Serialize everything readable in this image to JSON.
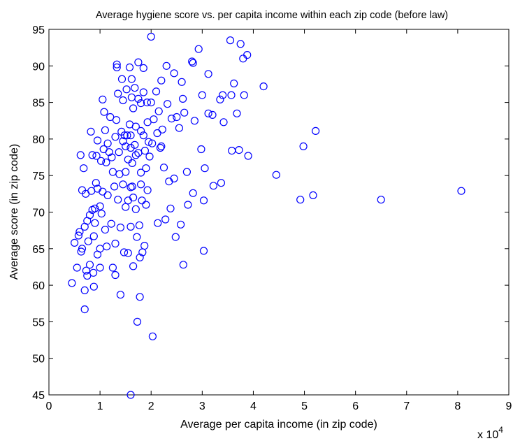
{
  "chart_data": {
    "type": "scatter",
    "title": "Average hygiene score vs. per capita income within each zip code (before law)",
    "xlabel": "Average per capita income (in zip code)",
    "ylabel": "Average score (in zip code)",
    "x_multiplier_label": {
      "base": "x 10",
      "exponent": "4"
    },
    "xlim": [
      0,
      9
    ],
    "ylim": [
      45,
      95
    ],
    "xticks": [
      "0",
      "1",
      "2",
      "3",
      "4",
      "5",
      "6",
      "7",
      "8",
      "9"
    ],
    "yticks": [
      "45",
      "50",
      "55",
      "60",
      "65",
      "70",
      "75",
      "80",
      "85",
      "90",
      "95"
    ],
    "grid": false,
    "marker_color": "#0000ff",
    "x_units": "x 10^4",
    "points": [
      [
        0.45,
        60.3
      ],
      [
        0.5,
        65.8
      ],
      [
        0.55,
        62.4
      ],
      [
        0.58,
        66.8
      ],
      [
        0.6,
        67.3
      ],
      [
        0.62,
        77.8
      ],
      [
        0.63,
        64.6
      ],
      [
        0.65,
        73.0
      ],
      [
        0.65,
        65.0
      ],
      [
        0.68,
        76.0
      ],
      [
        0.7,
        59.3
      ],
      [
        0.7,
        56.7
      ],
      [
        0.7,
        68.0
      ],
      [
        0.72,
        72.5
      ],
      [
        0.73,
        62.0
      ],
      [
        0.75,
        68.8
      ],
      [
        0.75,
        61.3
      ],
      [
        0.77,
        66.0
      ],
      [
        0.8,
        62.8
      ],
      [
        0.8,
        69.6
      ],
      [
        0.82,
        81.0
      ],
      [
        0.83,
        72.9
      ],
      [
        0.85,
        70.3
      ],
      [
        0.85,
        77.8
      ],
      [
        0.87,
        61.7
      ],
      [
        0.88,
        66.7
      ],
      [
        0.88,
        59.8
      ],
      [
        0.9,
        68.5
      ],
      [
        0.9,
        70.5
      ],
      [
        0.92,
        74.0
      ],
      [
        0.93,
        77.7
      ],
      [
        0.95,
        64.2
      ],
      [
        0.95,
        79.8
      ],
      [
        0.95,
        73.2
      ],
      [
        1.0,
        70.8
      ],
      [
        1.0,
        65.0
      ],
      [
        1.0,
        62.4
      ],
      [
        1.02,
        77.0
      ],
      [
        1.03,
        69.8
      ],
      [
        1.05,
        72.8
      ],
      [
        1.05,
        85.4
      ],
      [
        1.07,
        78.6
      ],
      [
        1.08,
        83.7
      ],
      [
        1.1,
        81.2
      ],
      [
        1.1,
        67.6
      ],
      [
        1.12,
        76.8
      ],
      [
        1.13,
        65.3
      ],
      [
        1.15,
        79.4
      ],
      [
        1.15,
        72.3
      ],
      [
        1.18,
        78.2
      ],
      [
        1.2,
        83.0
      ],
      [
        1.22,
        68.4
      ],
      [
        1.23,
        77.5
      ],
      [
        1.25,
        75.5
      ],
      [
        1.25,
        62.4
      ],
      [
        1.28,
        73.5
      ],
      [
        1.3,
        80.3
      ],
      [
        1.3,
        65.7
      ],
      [
        1.3,
        61.4
      ],
      [
        1.32,
        82.6
      ],
      [
        1.33,
        90.2
      ],
      [
        1.33,
        89.8
      ],
      [
        1.35,
        86.2
      ],
      [
        1.35,
        71.7
      ],
      [
        1.37,
        78.2
      ],
      [
        1.38,
        75.2
      ],
      [
        1.4,
        67.9
      ],
      [
        1.4,
        58.7
      ],
      [
        1.42,
        81.0
      ],
      [
        1.43,
        88.2
      ],
      [
        1.45,
        85.3
      ],
      [
        1.45,
        79.7
      ],
      [
        1.45,
        73.8
      ],
      [
        1.47,
        64.5
      ],
      [
        1.48,
        80.5
      ],
      [
        1.5,
        79.0
      ],
      [
        1.5,
        75.5
      ],
      [
        1.5,
        70.7
      ],
      [
        1.52,
        86.8
      ],
      [
        1.53,
        80.5
      ],
      [
        1.55,
        77.2
      ],
      [
        1.55,
        71.6
      ],
      [
        1.55,
        64.4
      ],
      [
        1.58,
        89.8
      ],
      [
        1.58,
        82.0
      ],
      [
        1.6,
        80.5
      ],
      [
        1.6,
        78.8
      ],
      [
        1.6,
        73.4
      ],
      [
        1.6,
        68.0
      ],
      [
        1.62,
        88.2
      ],
      [
        1.62,
        85.7
      ],
      [
        1.63,
        76.7
      ],
      [
        1.63,
        73.5
      ],
      [
        1.65,
        84.2
      ],
      [
        1.65,
        72.0
      ],
      [
        1.65,
        62.6
      ],
      [
        1.68,
        87.0
      ],
      [
        1.68,
        79.2
      ],
      [
        1.7,
        81.7
      ],
      [
        1.7,
        77.8
      ],
      [
        1.7,
        70.4
      ],
      [
        1.72,
        66.6
      ],
      [
        1.73,
        55.0
      ],
      [
        1.75,
        90.5
      ],
      [
        1.75,
        85.5
      ],
      [
        1.75,
        78.1
      ],
      [
        1.77,
        68.2
      ],
      [
        1.78,
        63.8
      ],
      [
        1.78,
        58.4
      ],
      [
        1.8,
        84.9
      ],
      [
        1.8,
        81.1
      ],
      [
        1.8,
        75.4
      ],
      [
        1.8,
        73.8
      ],
      [
        1.82,
        71.6
      ],
      [
        1.83,
        64.5
      ],
      [
        1.85,
        89.7
      ],
      [
        1.85,
        86.4
      ],
      [
        1.85,
        80.5
      ],
      [
        1.87,
        65.4
      ],
      [
        1.88,
        78.4
      ],
      [
        1.9,
        76.0
      ],
      [
        1.9,
        71.0
      ],
      [
        1.92,
        85.0
      ],
      [
        1.93,
        82.3
      ],
      [
        1.93,
        73.0
      ],
      [
        1.95,
        79.6
      ],
      [
        1.97,
        77.6
      ],
      [
        2.0,
        94.0
      ],
      [
        2.0,
        85.0
      ],
      [
        2.02,
        79.4
      ],
      [
        2.03,
        53.0
      ],
      [
        2.05,
        82.7
      ],
      [
        2.1,
        86.5
      ],
      [
        2.12,
        80.8
      ],
      [
        2.13,
        68.5
      ],
      [
        2.15,
        83.8
      ],
      [
        2.18,
        78.8
      ],
      [
        2.2,
        88.0
      ],
      [
        2.2,
        79.0
      ],
      [
        2.22,
        81.3
      ],
      [
        2.25,
        76.1
      ],
      [
        2.28,
        69.0
      ],
      [
        2.3,
        90.0
      ],
      [
        2.32,
        84.8
      ],
      [
        2.35,
        74.2
      ],
      [
        2.38,
        70.5
      ],
      [
        2.4,
        82.8
      ],
      [
        2.45,
        89.0
      ],
      [
        2.45,
        74.6
      ],
      [
        2.48,
        66.6
      ],
      [
        2.5,
        83.0
      ],
      [
        2.55,
        81.5
      ],
      [
        2.58,
        68.3
      ],
      [
        2.6,
        87.8
      ],
      [
        2.62,
        85.5
      ],
      [
        2.63,
        62.8
      ],
      [
        2.65,
        83.6
      ],
      [
        2.7,
        75.5
      ],
      [
        2.72,
        71.0
      ],
      [
        2.8,
        90.6
      ],
      [
        2.82,
        90.4
      ],
      [
        2.82,
        72.6
      ],
      [
        2.85,
        82.5
      ],
      [
        2.93,
        92.3
      ],
      [
        2.98,
        78.6
      ],
      [
        3.0,
        86.0
      ],
      [
        3.03,
        71.6
      ],
      [
        3.03,
        64.7
      ],
      [
        3.05,
        76.0
      ],
      [
        3.12,
        88.9
      ],
      [
        3.12,
        83.5
      ],
      [
        3.2,
        83.3
      ],
      [
        3.22,
        73.6
      ],
      [
        3.35,
        85.4
      ],
      [
        3.37,
        74.0
      ],
      [
        3.4,
        86.0
      ],
      [
        3.42,
        82.3
      ],
      [
        3.55,
        93.5
      ],
      [
        3.57,
        86.0
      ],
      [
        3.58,
        78.4
      ],
      [
        3.62,
        87.6
      ],
      [
        3.68,
        83.5
      ],
      [
        3.72,
        78.5
      ],
      [
        3.75,
        93.0
      ],
      [
        3.8,
        91.0
      ],
      [
        3.82,
        86.0
      ],
      [
        3.88,
        91.5
      ],
      [
        3.9,
        77.7
      ],
      [
        4.2,
        87.2
      ],
      [
        4.45,
        75.1
      ],
      [
        4.92,
        71.7
      ],
      [
        4.98,
        79.0
      ],
      [
        5.17,
        72.3
      ],
      [
        5.22,
        81.1
      ],
      [
        6.5,
        71.7
      ],
      [
        8.07,
        72.9
      ],
      [
        1.6,
        45.0
      ]
    ]
  }
}
